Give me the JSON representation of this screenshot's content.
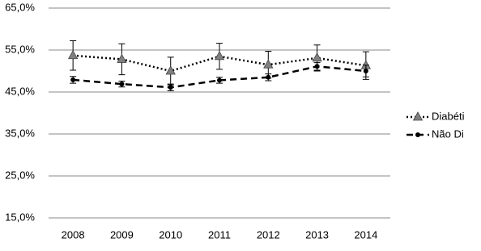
{
  "chart_data": {
    "type": "line",
    "categories": [
      "2008",
      "2009",
      "2010",
      "2011",
      "2012",
      "2013",
      "2014"
    ],
    "series": [
      {
        "name": "Diabéti",
        "color": "#000000",
        "marker_color": "#808080",
        "marker": "triangle",
        "dash": "dotted",
        "values": [
          53.7,
          52.8,
          50.0,
          53.5,
          51.5,
          53.1,
          51.3
        ],
        "errors": [
          3.5,
          3.7,
          3.3,
          3.1,
          3.2,
          3.1,
          3.3
        ]
      },
      {
        "name": "Não Di",
        "color": "#000000",
        "marker_color": "#000000",
        "marker": "circle",
        "dash": "dashed",
        "values": [
          47.9,
          46.9,
          46.1,
          47.8,
          48.5,
          51.1,
          50.0
        ],
        "errors": [
          0.8,
          0.7,
          0.8,
          0.7,
          0.8,
          0.9,
          1.4
        ]
      }
    ],
    "ylim": [
      15,
      65
    ],
    "yticks": [
      {
        "value": 15,
        "label": "15,0%"
      },
      {
        "value": 25,
        "label": "25,0%"
      },
      {
        "value": 35,
        "label": "35,0%"
      },
      {
        "value": 45,
        "label": "45,0%"
      },
      {
        "value": 55,
        "label": "55,0%"
      },
      {
        "value": 65,
        "label": "65,0%"
      }
    ],
    "grid": true,
    "legend": "right"
  }
}
